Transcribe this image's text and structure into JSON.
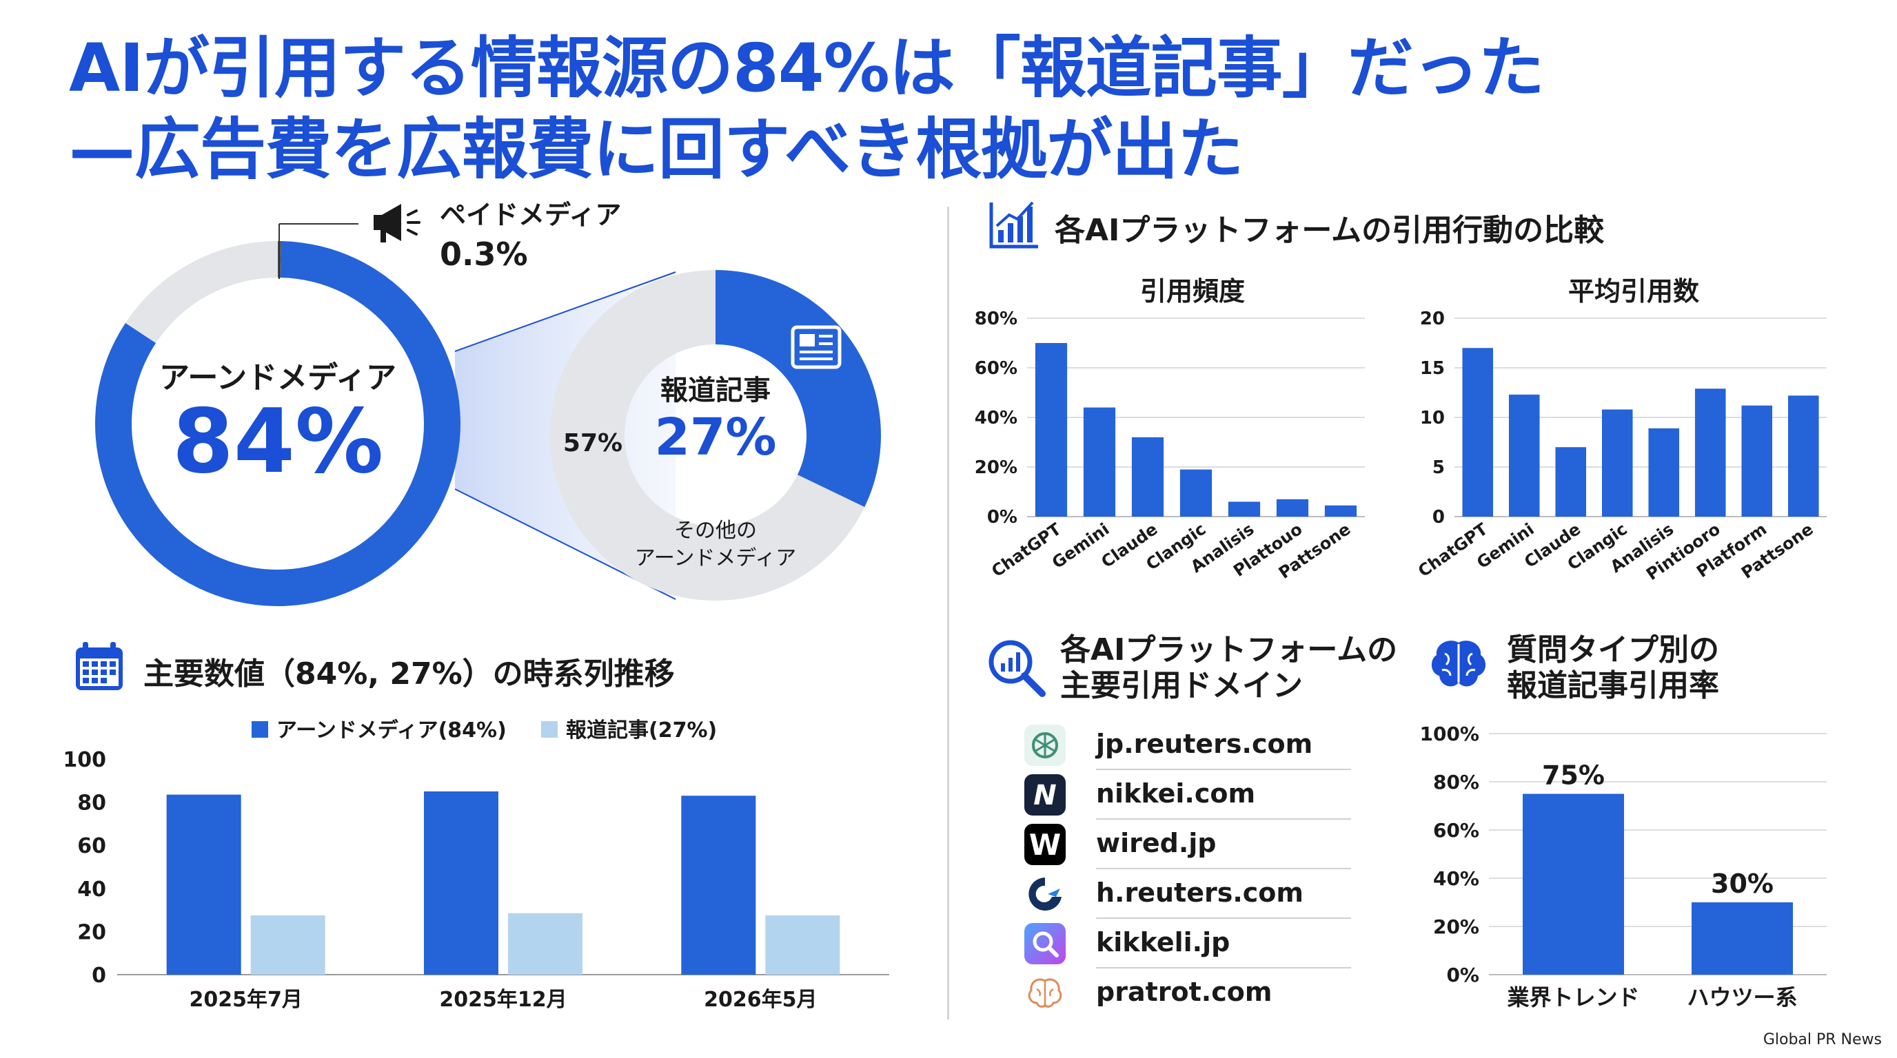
{
  "title": {
    "line1": "AIが引用する情報源の84%は「報道記事」だった",
    "line2": "—広告費を広報費に回すべき根拠が出た"
  },
  "donut": {
    "main_label": "アーンドメディア",
    "main_value": "84%",
    "paid_label": "ペイドメディア",
    "paid_value": "0.3%",
    "sub_center_label": "報道記事",
    "sub_center_value": "27%",
    "sub_left_value": "57%",
    "sub_other_line1": "その他の",
    "sub_other_line2": "アーンドメディア",
    "colors": {
      "earned": "#2563d9",
      "grey": "#e3e5e8",
      "paid": "#555555"
    }
  },
  "platforms": {
    "heading": "各AIプラットフォームの引用行動の比較",
    "icon": "bar-chart-icon"
  },
  "domains": {
    "heading_line1": "各AIプラットフォームの",
    "heading_line2": "主要引用ドメイン",
    "items": [
      {
        "text": "jp.reuters.com",
        "icon": "openai-icon"
      },
      {
        "text": "nikkei.com",
        "icon": "n-logo-icon"
      },
      {
        "text": "wired.jp",
        "icon": "w-logo-icon"
      },
      {
        "text": "h.reuters.com",
        "icon": "bird-logo-icon"
      },
      {
        "text": "kikkeli.jp",
        "icon": "search-gradient-icon"
      },
      {
        "text": "pratrot.com",
        "icon": "brain-outline-icon"
      }
    ]
  },
  "question": {
    "heading_line1": "質問タイプ別の",
    "heading_line2": "報道記事引用率"
  },
  "timeseries": {
    "heading": "主要数値（84%, 27%）の時系列推移"
  },
  "credit": "Global PR News",
  "chart_data": [
    {
      "type": "pie",
      "title": "",
      "labels": [
        "アーンドメディア",
        "ペイドメディア",
        ""
      ],
      "values": [
        84,
        0.3,
        15.7
      ],
      "colors": [
        "#2563d9",
        "#555555",
        "#e3e5e8"
      ]
    },
    {
      "type": "pie",
      "title": "",
      "labels": [
        "報道記事",
        "その他の アーンドメディア"
      ],
      "values": [
        27,
        57
      ],
      "colors": [
        "#2563d9",
        "#e3e5e8"
      ]
    },
    {
      "type": "bar",
      "title": "引用頻度",
      "categories": [
        "ChatGPT",
        "Gemini",
        "Claude",
        "Clangic",
        "Analisis",
        "Plattouo",
        "Pattsone"
      ],
      "values": [
        70,
        44,
        32,
        19,
        6,
        7,
        4.5
      ],
      "ylim": [
        0,
        80
      ],
      "yticks": [
        0,
        20,
        40,
        60,
        80
      ],
      "ytick_labels": [
        "0%",
        "20%",
        "40%",
        "60%",
        "80%"
      ],
      "color": "#2563d9",
      "grid": true
    },
    {
      "type": "bar",
      "title": "平均引用数",
      "categories": [
        "ChatGPT",
        "Gemini",
        "Claude",
        "Clangic",
        "Analisis",
        "Pintiooro",
        "Platform",
        "Pattsone"
      ],
      "values": [
        17,
        12.3,
        7,
        10.8,
        8.9,
        12.9,
        11.2,
        12.2
      ],
      "ylim": [
        0,
        20
      ],
      "yticks": [
        0,
        5,
        10,
        15,
        20
      ],
      "ytick_labels": [
        "0",
        "5",
        "10",
        "15",
        "20"
      ],
      "color": "#2563d9",
      "grid": true
    },
    {
      "type": "bar",
      "title": "",
      "categories": [
        "業界トレンド",
        "ハウツー系"
      ],
      "values": [
        75,
        30
      ],
      "data_labels": [
        "75%",
        "30%"
      ],
      "ylim": [
        0,
        100
      ],
      "yticks": [
        0,
        20,
        40,
        60,
        80,
        100
      ],
      "ytick_labels": [
        "0%",
        "20%",
        "40%",
        "60%",
        "80%",
        "100%"
      ],
      "color": "#2563d9",
      "grid": true
    },
    {
      "type": "bar",
      "title": "",
      "categories": [
        "2025年7月",
        "2025年12月",
        "2026年5月"
      ],
      "series": [
        {
          "name": "アーンドメディア(84%)",
          "values": [
            83.5,
            85,
            83
          ],
          "color": "#2563d9"
        },
        {
          "name": "報道記事(27%)",
          "values": [
            27.5,
            28.5,
            27.5
          ],
          "color": "#b3d4ef"
        }
      ],
      "ylim": [
        0,
        100
      ],
      "yticks": [
        0,
        20,
        40,
        60,
        80,
        100
      ],
      "ytick_labels": [
        "0",
        "20",
        "40",
        "60",
        "80",
        "100"
      ],
      "legend": "top-center",
      "grid": false
    }
  ]
}
